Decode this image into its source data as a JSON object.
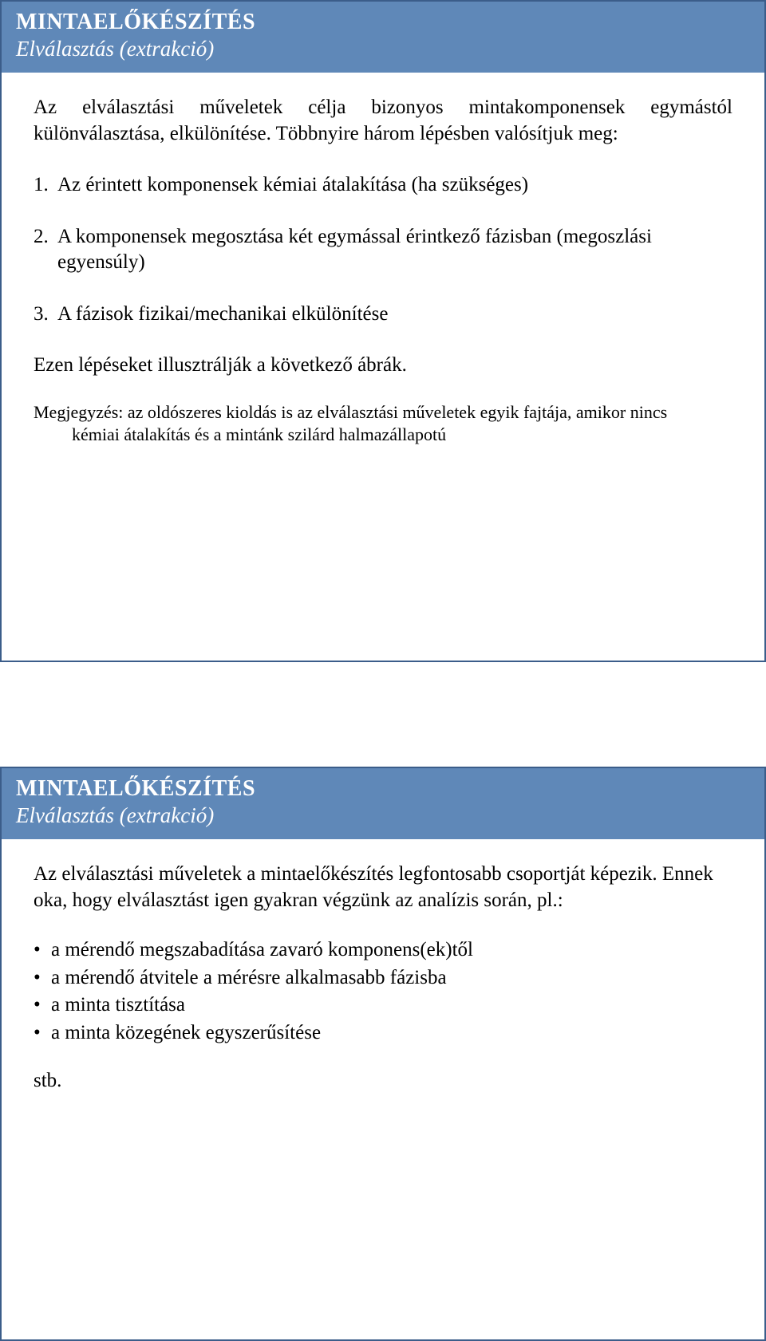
{
  "colors": {
    "header_bg": "#5f88b8",
    "border": "#3b5d8a",
    "text": "#000000",
    "header_text": "#ffffff"
  },
  "slide1": {
    "title": "MINTAELŐKÉSZÍTÉS",
    "subtitle": "Elválasztás (extrakció)",
    "intro": "Az elválasztási műveletek célja bizonyos mintakomponensek egymástól különválasztása, elkülönítése. Többnyire három lépésben valósítjuk meg:",
    "items": [
      {
        "num": "1.",
        "text": "Az érintett komponensek kémiai átalakítása (ha szükséges)"
      },
      {
        "num": "2.",
        "text": "A komponensek megosztása két egymással érintkező fázisban (megoszlási egyensúly)"
      },
      {
        "num": "3.",
        "text": "A fázisok fizikai/mechanikai elkülönítése"
      }
    ],
    "after_list": "Ezen lépéseket illusztrálják a következő ábrák.",
    "note_line1": "Megjegyzés: az oldószeres kioldás is az elválasztási műveletek egyik fajtája, amikor nincs",
    "note_line2": "kémiai átalakítás és a mintánk szilárd halmazállapotú"
  },
  "slide2": {
    "title": "MINTAELŐKÉSZÍTÉS",
    "subtitle": "Elválasztás (extrakció)",
    "intro": "Az elválasztási műveletek a mintaelőkészítés legfontosabb csoportját képezik. Ennek oka, hogy elválasztást igen gyakran végzünk az analízis során, pl.:",
    "bullets": [
      "a mérendő megszabadítása zavaró komponens(ek)től",
      "a mérendő átvitele a mérésre alkalmasabb fázisba",
      "a minta tisztítása",
      "a minta közegének egyszerűsítése"
    ],
    "closing": "stb."
  }
}
